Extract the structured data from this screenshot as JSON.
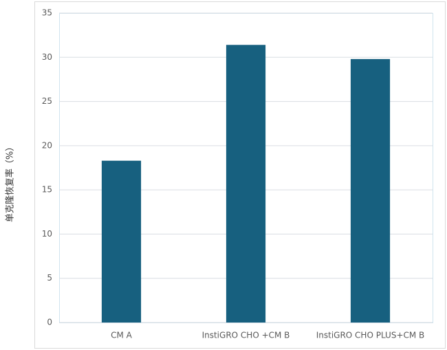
{
  "chart_data": {
    "type": "bar",
    "y_label": "单克隆恢复率（%）",
    "categories": [
      "CM A",
      "InstiGRO CHO +CM B",
      "InstiGRO CHO PLUS+CM B"
    ],
    "values": [
      18.3,
      31.4,
      29.8
    ],
    "color": "#17607f",
    "ylim": [
      0,
      35
    ],
    "yticks": [
      0,
      5,
      10,
      15,
      20,
      25,
      30,
      35
    ],
    "grid": true
  }
}
